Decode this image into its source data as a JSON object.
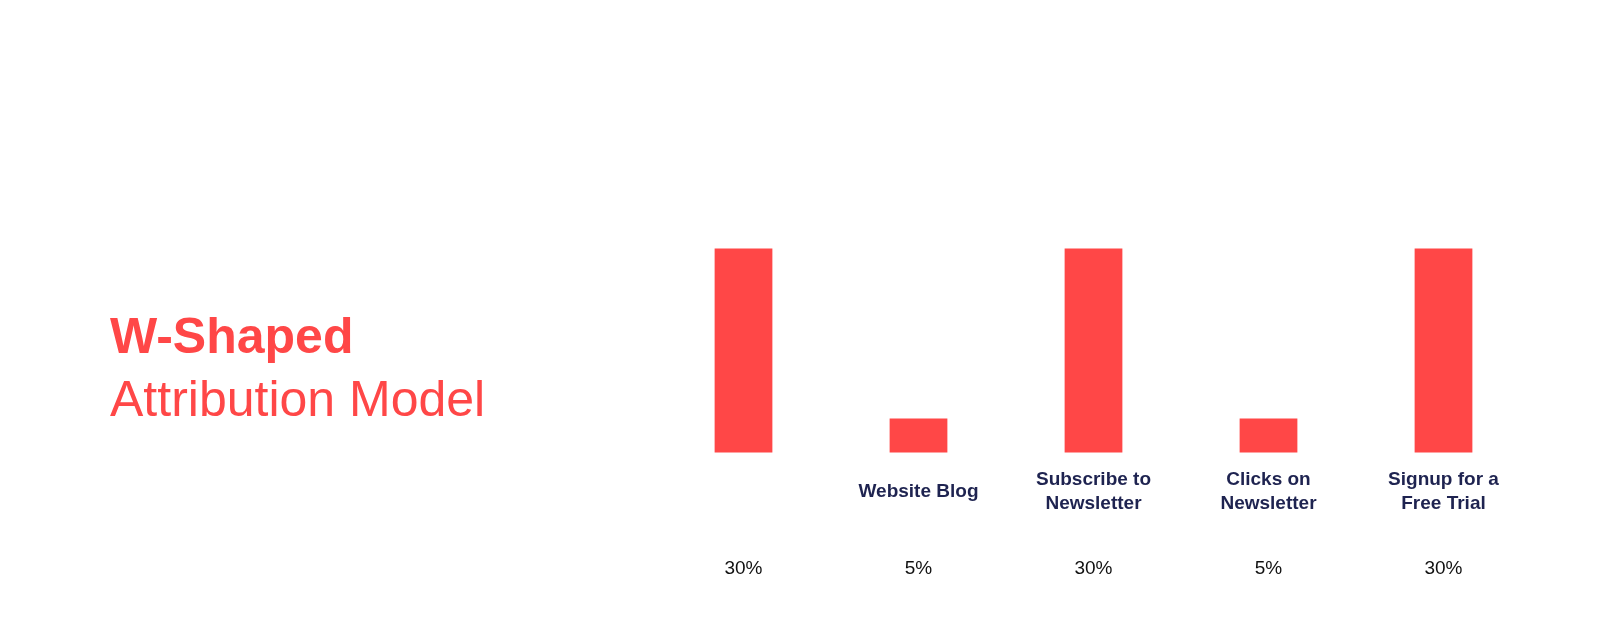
{
  "chart_data": {
    "type": "bar",
    "title": "W-Shaped Attribution Model",
    "categories": [
      null,
      "Website Blog",
      "Subscribe to Newsletter",
      "Clicks on Newsletter",
      "Signup for a Free Trial"
    ],
    "values": [
      30,
      5,
      30,
      5,
      30
    ],
    "value_labels": [
      "30%",
      "5%",
      "30%",
      "5%",
      "30%"
    ],
    "color": "#ff4747",
    "grid": false
  }
}
